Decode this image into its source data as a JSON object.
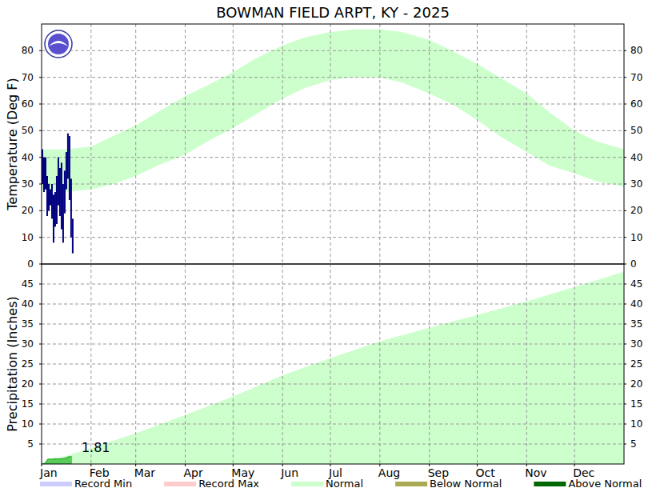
{
  "chart_data": [
    {
      "type": "bar",
      "title": "BOWMAN FIELD ARPT, KY - 2025",
      "y_label": "Temperature (Deg F)",
      "xlim": [
        1,
        366
      ],
      "xticks": [
        1,
        32,
        60,
        91,
        121,
        152,
        182,
        213,
        244,
        274,
        305,
        335
      ],
      "ylim": [
        0,
        90
      ],
      "yticks": [
        0,
        10,
        20,
        30,
        40,
        50,
        60,
        70,
        80
      ],
      "grid": true,
      "tick_labels": "y",
      "series": [
        {
          "type": "band",
          "color": "#ccffcc",
          "x": [
            1,
            15,
            32,
            46,
            60,
            74,
            91,
            105,
            121,
            135,
            152,
            166,
            182,
            196,
            213,
            227,
            244,
            258,
            274,
            288,
            305,
            319,
            335,
            349,
            366
          ],
          "values": [
            43,
            43,
            44,
            48,
            52,
            57,
            63,
            67,
            72,
            77,
            82,
            85,
            87,
            88,
            88,
            87,
            84,
            80,
            75,
            70,
            64,
            57,
            50,
            46,
            43
          ],
          "low": [
            28,
            27,
            28,
            30,
            33,
            37,
            41,
            46,
            51,
            56,
            62,
            66,
            69,
            70,
            70,
            68,
            64,
            60,
            54,
            48,
            42,
            37,
            34,
            31,
            29
          ]
        },
        {
          "type": "bar",
          "color": "#000080",
          "x": [
            1,
            2,
            3,
            4,
            5,
            6,
            7,
            8,
            9,
            10,
            11,
            12,
            13,
            14,
            15,
            16,
            17,
            18,
            19,
            20
          ],
          "values": [
            43,
            40,
            40,
            33,
            30,
            28,
            30,
            26,
            27,
            33,
            40,
            36,
            38,
            30,
            35,
            42,
            49,
            48,
            32,
            17
          ],
          "low": [
            30,
            27,
            28,
            18,
            20,
            22,
            17,
            8,
            14,
            15,
            22,
            18,
            13,
            8,
            19,
            28,
            32,
            24,
            10,
            4
          ]
        }
      ]
    },
    {
      "type": "area",
      "y_label": "Precipitation (Inches)",
      "xlim": [
        1,
        366
      ],
      "xticks": [
        {
          "value": 1,
          "label": "Jan"
        },
        {
          "value": 32,
          "label": "Feb"
        },
        {
          "value": 60,
          "label": "Mar"
        },
        {
          "value": 91,
          "label": "Apr"
        },
        {
          "value": 121,
          "label": "May"
        },
        {
          "value": 152,
          "label": "Jun"
        },
        {
          "value": 182,
          "label": "Jul"
        },
        {
          "value": 213,
          "label": "Aug"
        },
        {
          "value": 244,
          "label": "Sep"
        },
        {
          "value": 274,
          "label": "Oct"
        },
        {
          "value": 305,
          "label": "Nov"
        },
        {
          "value": 335,
          "label": "Dec"
        }
      ],
      "ylim": [
        0,
        50
      ],
      "yticks": [
        5,
        10,
        15,
        20,
        25,
        30,
        35,
        40,
        45
      ],
      "grid": true,
      "legend": "bottom",
      "series": [
        {
          "type": "area",
          "color": "#ccffcc",
          "x": [
            1,
            32,
            60,
            91,
            121,
            152,
            182,
            213,
            244,
            274,
            305,
            335,
            366
          ],
          "values": [
            0,
            3.8,
            7.5,
            12.1,
            16.7,
            22.0,
            26.3,
            30.5,
            33.9,
            37.1,
            40.5,
            44.1,
            47.9
          ]
        },
        {
          "type": "area",
          "color": "#33bb33",
          "x": [
            1,
            2,
            3,
            4,
            5,
            6,
            7,
            8,
            9,
            10,
            11,
            12,
            13,
            14,
            15,
            16,
            17,
            18,
            19,
            20
          ],
          "values": [
            0,
            0.05,
            0.05,
            0.6,
            1.2,
            1.2,
            1.2,
            1.2,
            1.3,
            1.3,
            1.3,
            1.3,
            1.3,
            1.3,
            1.4,
            1.4,
            1.6,
            1.8,
            1.81,
            1.81
          ]
        }
      ],
      "annotations": [
        {
          "text": "1.81",
          "x": 20,
          "y": 1.81
        }
      ],
      "legend_items": [
        {
          "name": "Record Min",
          "color": "#ccccff"
        },
        {
          "name": "Record Max",
          "color": "#ffcccc"
        },
        {
          "name": "Normal",
          "color": "#ccffcc"
        },
        {
          "name": "Below Normal",
          "color": "#aaaa55"
        },
        {
          "name": "Above Normal",
          "color": "#006600"
        }
      ]
    }
  ]
}
